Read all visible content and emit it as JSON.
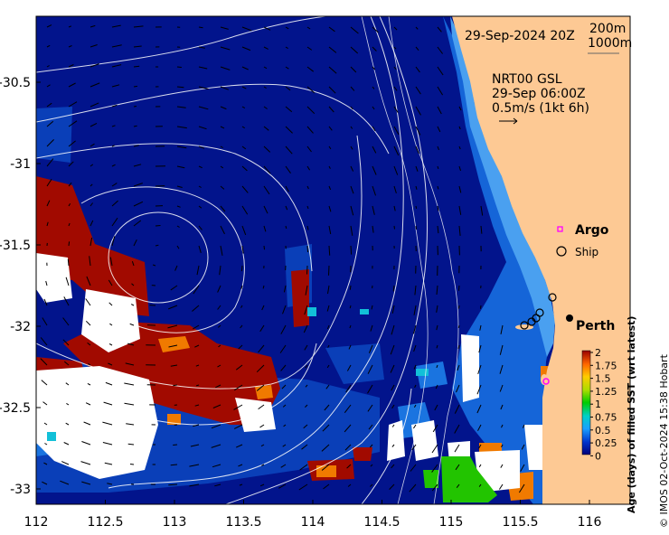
{
  "map": {
    "title_date": "29-Sep-2024 20Z",
    "isobaths": [
      "200m",
      "1000m"
    ],
    "current_source": "NRT00 GSL",
    "current_time": "29-Sep 06:00Z",
    "current_scale": "0.5m/s (1kt 6h)",
    "legend_argo": "Argo",
    "legend_ship": "Ship",
    "city": "Perth",
    "colors": {
      "ocean_deep": "#02148c",
      "ocean_mid": "#0a3fb8",
      "ocean_shelf": "#1565d8",
      "ocean_light": "#4aa0f0",
      "land": "#fdc994",
      "age_high": "#a10a00",
      "argo": "#e000e0"
    }
  },
  "axes": {
    "x_ticks": [
      "112",
      "112.5",
      "113",
      "113.5",
      "114",
      "114.5",
      "115",
      "115.5",
      "116"
    ],
    "y_ticks": [
      "-30.5",
      "-31",
      "-31.5",
      "-32",
      "-32.5",
      "-33"
    ]
  },
  "colorbar": {
    "ticks": [
      "2",
      "1.75",
      "1.5",
      "1.25",
      "1",
      "0.75",
      "0.5",
      "0.25",
      "0"
    ],
    "label": "Age (days) of filled SST (wrt latest)"
  },
  "credit": "© IMOS 02-Oct-2024 15:38 Hobart"
}
